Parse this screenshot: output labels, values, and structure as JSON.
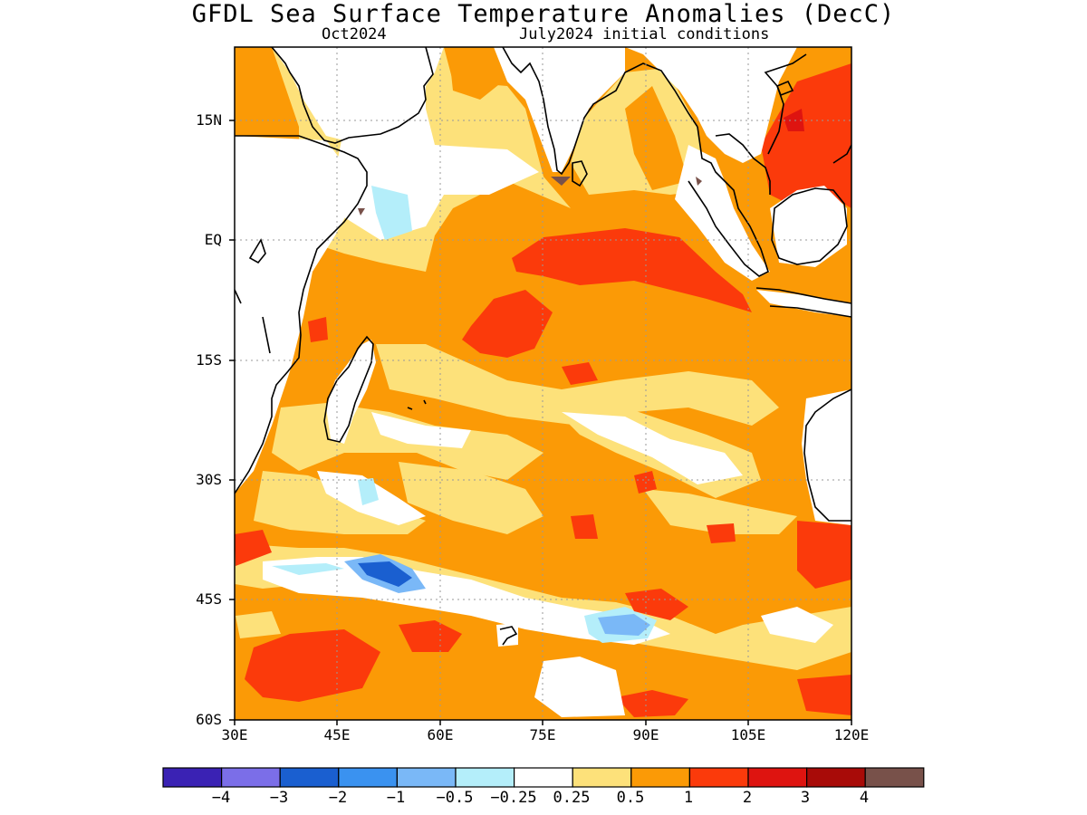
{
  "title": "GFDL Sea Surface Temperature Anomalies (DecC)",
  "subtitle_left": "Oct2024",
  "subtitle_right": "July2024 initial conditions",
  "map": {
    "lat_ticks": [
      "15N",
      "EQ",
      "15S",
      "30S",
      "45S",
      "60S"
    ],
    "lon_ticks": [
      "30E",
      "45E",
      "60E",
      "75E",
      "90E",
      "105E",
      "120E"
    ],
    "lon_range": [
      30,
      120
    ],
    "lat_range": [
      -60,
      24
    ],
    "grid": "dotted"
  },
  "colorbar": {
    "colors": [
      "#3a22b4",
      "#7b6ee8",
      "#1a5fd0",
      "#3a92f0",
      "#7ab8f7",
      "#b4eefa",
      "#ffffff",
      "#fde17a",
      "#fb9a06",
      "#fb3a0b",
      "#de1410",
      "#a80b08",
      "#78514a"
    ],
    "labels": [
      "−4",
      "−3",
      "−2",
      "−1",
      "−0.5",
      "−0.25",
      "0.25",
      "0.5",
      "1",
      "2",
      "3",
      "4"
    ]
  },
  "colors": {
    "land": "#ffffff",
    "coast": "#000000",
    "background_anomaly": "#fb9a06"
  }
}
